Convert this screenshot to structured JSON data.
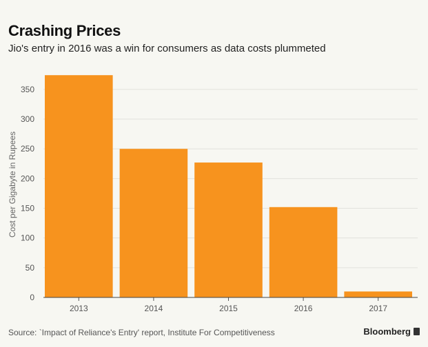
{
  "chart_data": {
    "type": "bar",
    "title": "Crashing Prices",
    "subtitle": "Jio's entry in 2016 was a win for consumers as data costs plummeted",
    "categories": [
      "2013",
      "2014",
      "2015",
      "2016",
      "2017"
    ],
    "values": [
      374,
      250,
      227,
      152,
      10
    ],
    "xlabel": "",
    "ylabel": "Cost per Gigabyte in Rupees",
    "ylim": [
      0,
      380
    ],
    "yticks": [
      0,
      50,
      100,
      150,
      200,
      250,
      300,
      350
    ],
    "grid": true,
    "bar_color": "#f7931e"
  },
  "footer": {
    "source": "Source: `Impact of Reliance's Entry' report, Institute For Competitiveness",
    "brand": "Bloomberg"
  }
}
